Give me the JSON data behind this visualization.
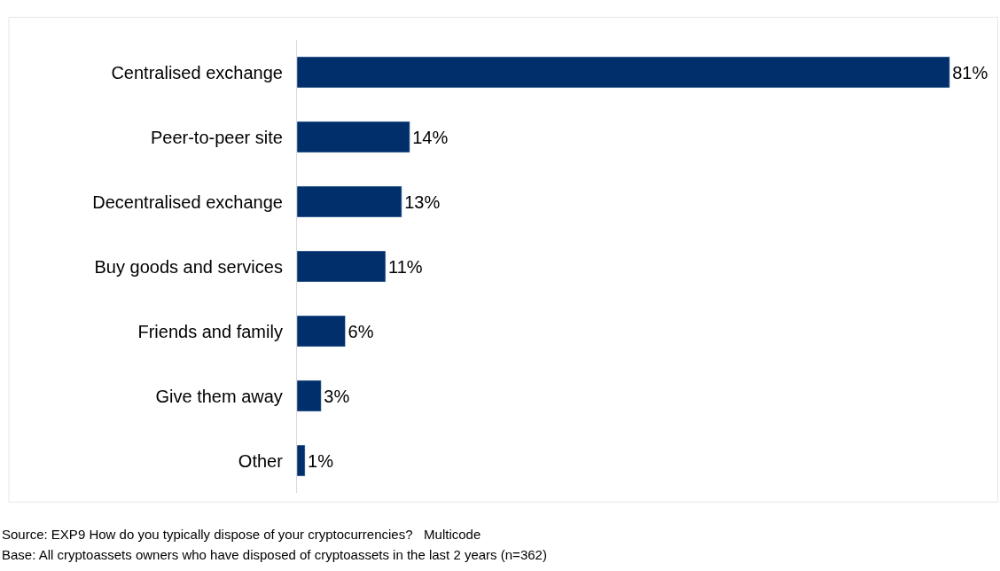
{
  "chart_data": {
    "type": "bar",
    "orientation": "horizontal",
    "categories": [
      "Centralised exchange",
      "Peer-to-peer site",
      "Decentralised exchange",
      "Buy goods and services",
      "Friends and family",
      "Give them away",
      "Other"
    ],
    "values": [
      81,
      14,
      13,
      11,
      6,
      3,
      1
    ],
    "value_labels": [
      "81%",
      "14%",
      "13%",
      "11%",
      "6%",
      "3%",
      "1%"
    ],
    "color": "#002f6c",
    "tick_labels": "y",
    "annotations": [
      "Source: EXP9 How do you typically dispose of your cryptocurrencies?   Multicode",
      "Base: All cryptoassets owners who have disposed of cryptoassets in the last 2 years (n=362)"
    ]
  }
}
